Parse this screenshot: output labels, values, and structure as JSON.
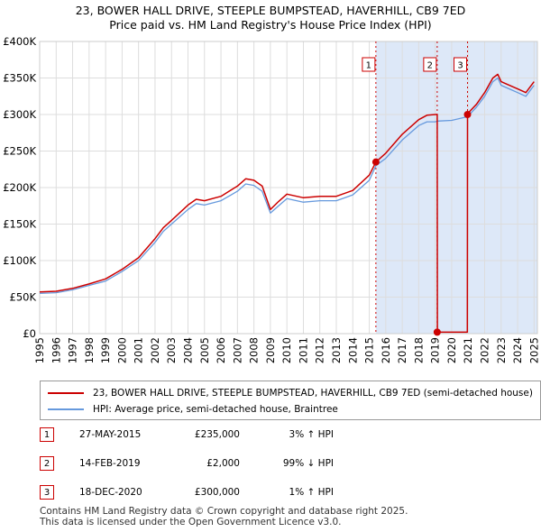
{
  "titles": {
    "line1": "23, BOWER HALL DRIVE, STEEPLE BUMPSTEAD, HAVERHILL, CB9 7ED",
    "line2": "Price paid vs. HM Land Registry's House Price Index (HPI)"
  },
  "colors": {
    "price_line": "#cc0000",
    "hpi_line": "#6699dd",
    "shade": "#dde8f8",
    "grid": "#dddddd",
    "vline": "#cc0000"
  },
  "chart_data": {
    "type": "line",
    "title": "Price paid vs. HM Land Registry's House Price Index (HPI)",
    "xlabel": "",
    "ylabel": "",
    "xlim": [
      1995,
      2025.2
    ],
    "ylim": [
      0,
      400000
    ],
    "y_ticks": [
      0,
      50000,
      100000,
      150000,
      200000,
      250000,
      300000,
      350000,
      400000
    ],
    "y_tick_labels": [
      "£0",
      "£50K",
      "£100K",
      "£150K",
      "£200K",
      "£250K",
      "£300K",
      "£350K",
      "£400K"
    ],
    "x_ticks": [
      1995,
      1996,
      1997,
      1998,
      1999,
      2000,
      2001,
      2002,
      2003,
      2004,
      2005,
      2006,
      2007,
      2008,
      2009,
      2010,
      2011,
      2012,
      2013,
      2014,
      2015,
      2016,
      2017,
      2018,
      2019,
      2020,
      2021,
      2022,
      2023,
      2024,
      2025
    ],
    "x_tick_labels": [
      "1995",
      "1996",
      "1997",
      "1998",
      "1999",
      "2000",
      "2001",
      "2002",
      "2003",
      "2004",
      "2005",
      "2006",
      "2007",
      "2008",
      "2009",
      "2010",
      "2011",
      "2012",
      "2013",
      "2014",
      "2015",
      "2016",
      "2017",
      "2018",
      "2019",
      "2020",
      "2021",
      "2022",
      "2023",
      "2024",
      "2025"
    ],
    "grid": true,
    "shaded_range": [
      2015.4,
      2025.2
    ],
    "series": [
      {
        "name": "HPI: Average price, semi-detached house, Braintree",
        "x": [
          1995,
          1996,
          1997,
          1998,
          1999,
          2000,
          2001,
          2002,
          2002.5,
          2003,
          2004,
          2004.5,
          2005,
          2006,
          2007,
          2007.5,
          2008,
          2008.5,
          2009,
          2009.5,
          2010,
          2011,
          2012,
          2013,
          2014,
          2015,
          2015.4,
          2016,
          2017,
          2018,
          2018.5,
          2019,
          2019.12,
          2020,
          2020.96,
          2021,
          2021.5,
          2022,
          2022.5,
          2022.8,
          2023,
          2023.5,
          2024,
          2024.5,
          2025
        ],
        "values": [
          55000,
          56000,
          60000,
          66000,
          72000,
          85000,
          100000,
          125000,
          140000,
          150000,
          170000,
          178000,
          176000,
          182000,
          195000,
          205000,
          203000,
          195000,
          165000,
          175000,
          185000,
          180000,
          182000,
          182000,
          190000,
          210000,
          230000,
          240000,
          265000,
          285000,
          290000,
          290000,
          291000,
          292000,
          297000,
          298000,
          310000,
          325000,
          345000,
          350000,
          340000,
          335000,
          330000,
          325000,
          340000
        ]
      },
      {
        "name": "23, BOWER HALL DRIVE, STEEPLE BUMPSTEAD, HAVERHILL, CB9 7ED (semi-detached house)",
        "x": [
          1995,
          1996,
          1997,
          1998,
          1999,
          2000,
          2001,
          2002,
          2002.5,
          2003,
          2004,
          2004.5,
          2005,
          2006,
          2007,
          2007.5,
          2008,
          2008.5,
          2009,
          2009.5,
          2010,
          2011,
          2012,
          2013,
          2014,
          2015,
          2015.4,
          2016,
          2017,
          2018,
          2018.5,
          2019,
          2019.12,
          2019.13,
          2020,
          2020.95,
          2020.96,
          2021,
          2021.5,
          2022,
          2022.5,
          2022.8,
          2023,
          2023.5,
          2024,
          2024.5,
          2025
        ],
        "values": [
          57000,
          58000,
          62000,
          68000,
          75000,
          88000,
          104000,
          130000,
          145000,
          155000,
          176000,
          184000,
          182000,
          188000,
          202000,
          212000,
          210000,
          202000,
          170000,
          181000,
          191000,
          186000,
          188000,
          188000,
          196000,
          217000,
          235000,
          247000,
          273000,
          293000,
          299000,
          300000,
          300000,
          2000,
          2000,
          2000,
          300000,
          302000,
          314000,
          330000,
          350000,
          355000,
          345000,
          340000,
          335000,
          330000,
          345000
        ]
      }
    ],
    "markers": [
      {
        "label": "1",
        "x": 2015.4,
        "value": 235000
      },
      {
        "label": "2",
        "x": 2019.12,
        "value": 2000
      },
      {
        "label": "3",
        "x": 2020.96,
        "value": 300000
      }
    ]
  },
  "legend": {
    "price_label": "23, BOWER HALL DRIVE, STEEPLE BUMPSTEAD, HAVERHILL, CB9 7ED (semi-detached house)",
    "hpi_label": "HPI: Average price, semi-detached house, Braintree"
  },
  "sales": [
    {
      "num": "1",
      "date": "27-MAY-2015",
      "price": "£235,000",
      "hpi": "3% ↑ HPI"
    },
    {
      "num": "2",
      "date": "14-FEB-2019",
      "price": "£2,000",
      "hpi": "99% ↓ HPI"
    },
    {
      "num": "3",
      "date": "18-DEC-2020",
      "price": "£300,000",
      "hpi": "1% ↑ HPI"
    }
  ],
  "footer": {
    "line1": "Contains HM Land Registry data © Crown copyright and database right 2025.",
    "line2": "This data is licensed under the Open Government Licence v3.0."
  }
}
